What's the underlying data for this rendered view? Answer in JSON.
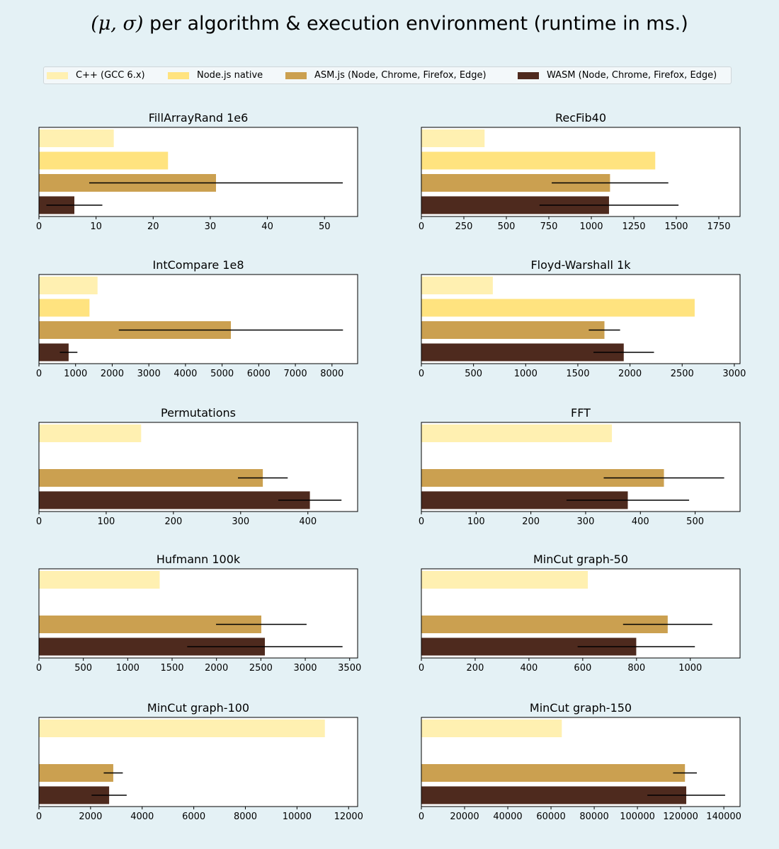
{
  "title_prefix": "(μ, σ)",
  "title_suffix": " per algorithm & execution environment (runtime in ms.)",
  "colors": {
    "cpp": "#fff0b1",
    "node": "#ffe37f",
    "asmjs": "#cba050",
    "wasm": "#4e2a1e",
    "background": "#e4f1f5"
  },
  "legend": [
    {
      "label": "C++ (GCC 6.x)",
      "color": "#fff0b1"
    },
    {
      "label": "Node.js native",
      "color": "#ffe37f"
    },
    {
      "label": "ASM.js (Node, Chrome, Firefox, Edge)",
      "color": "#cba050"
    },
    {
      "label": "WASM (Node, Chrome, Firefox, Edge)",
      "color": "#4e2a1e"
    }
  ],
  "chart_data": [
    {
      "type": "bar",
      "orientation": "horizontal",
      "title": "FillArrayRand 1e6",
      "series": [
        "C++ (GCC 6.x)",
        "Node.js native",
        "ASM.js (Node, Chrome, Firefox, Edge)",
        "WASM (Node, Chrome, Firefox, Edge)"
      ],
      "values": [
        13.1,
        22.6,
        31.0,
        6.2
      ],
      "errors": [
        null,
        null,
        22.2,
        4.9
      ],
      "xlim": [
        0,
        55.8
      ],
      "xticks": [
        0,
        10,
        20,
        30,
        40,
        50
      ],
      "grid": false
    },
    {
      "type": "bar",
      "orientation": "horizontal",
      "title": "RecFib40",
      "series": [
        "C++ (GCC 6.x)",
        "Node.js native",
        "ASM.js (Node, Chrome, Firefox, Edge)",
        "WASM (Node, Chrome, Firefox, Edge)"
      ],
      "values": [
        372,
        1376,
        1110,
        1104
      ],
      "errors": [
        null,
        null,
        343,
        409
      ],
      "xlim": [
        0,
        1875
      ],
      "xticks": [
        0,
        250,
        500,
        750,
        1000,
        1250,
        1500,
        1750
      ],
      "grid": false
    },
    {
      "type": "bar",
      "orientation": "horizontal",
      "title": "IntCompare 1e8",
      "series": [
        "C++ (GCC 6.x)",
        "Node.js native",
        "ASM.js (Node, Chrome, Firefox, Edge)",
        "WASM (Node, Chrome, Firefox, Edge)"
      ],
      "values": [
        1600,
        1380,
        5240,
        810
      ],
      "errors": [
        null,
        null,
        3060,
        240
      ],
      "xlim": [
        0,
        8700
      ],
      "xticks": [
        0,
        1000,
        2000,
        3000,
        4000,
        5000,
        6000,
        7000,
        8000
      ],
      "grid": false
    },
    {
      "type": "bar",
      "orientation": "horizontal",
      "title": "Floyd-Warshall 1k",
      "series": [
        "C++ (GCC 6.x)",
        "Node.js native",
        "ASM.js (Node, Chrome, Firefox, Edge)",
        "WASM (Node, Chrome, Firefox, Edge)"
      ],
      "values": [
        685,
        2620,
        1755,
        1940
      ],
      "errors": [
        null,
        null,
        150,
        290
      ],
      "xlim": [
        0,
        3055
      ],
      "xticks": [
        0,
        500,
        1000,
        1500,
        2000,
        2500,
        3000
      ],
      "grid": false
    },
    {
      "type": "bar",
      "orientation": "horizontal",
      "title": "Permutations",
      "series": [
        "C++ (GCC 6.x)",
        "Node.js native",
        "ASM.js (Node, Chrome, Firefox, Edge)",
        "WASM (Node, Chrome, Firefox, Edge)"
      ],
      "values": [
        152,
        null,
        333,
        403
      ],
      "errors": [
        null,
        null,
        37,
        47
      ],
      "xlim": [
        0,
        474
      ],
      "xticks": [
        0,
        100,
        200,
        300,
        400
      ],
      "grid": false
    },
    {
      "type": "bar",
      "orientation": "horizontal",
      "title": "FFT",
      "series": [
        "C++ (GCC 6.x)",
        "Node.js native",
        "ASM.js (Node, Chrome, Firefox, Edge)",
        "WASM (Node, Chrome, Firefox, Edge)"
      ],
      "values": [
        348,
        null,
        443,
        377
      ],
      "errors": [
        null,
        null,
        110,
        112
      ],
      "xlim": [
        0,
        582
      ],
      "xticks": [
        0,
        100,
        200,
        300,
        400,
        500
      ],
      "grid": false
    },
    {
      "type": "bar",
      "orientation": "horizontal",
      "title": "Hufmann 100k",
      "series": [
        "C++ (GCC 6.x)",
        "Node.js native",
        "ASM.js (Node, Chrome, Firefox, Edge)",
        "WASM (Node, Chrome, Firefox, Edge)"
      ],
      "values": [
        1360,
        null,
        2505,
        2545
      ],
      "errors": [
        null,
        null,
        510,
        875
      ],
      "xlim": [
        0,
        3590
      ],
      "xticks": [
        0,
        500,
        1000,
        1500,
        2000,
        2500,
        3000,
        3500
      ],
      "grid": false
    },
    {
      "type": "bar",
      "orientation": "horizontal",
      "title": "MinCut graph-50",
      "series": [
        "C++ (GCC 6.x)",
        "Node.js native",
        "ASM.js (Node, Chrome, Firefox, Edge)",
        "WASM (Node, Chrome, Firefox, Edge)"
      ],
      "values": [
        619,
        null,
        916,
        799
      ],
      "errors": [
        null,
        null,
        166,
        218
      ],
      "xlim": [
        0,
        1185
      ],
      "xticks": [
        0,
        200,
        400,
        600,
        800,
        1000
      ],
      "grid": false
    },
    {
      "type": "bar",
      "orientation": "horizontal",
      "title": "MinCut graph-100",
      "series": [
        "C++ (GCC 6.x)",
        "Node.js native",
        "ASM.js (Node, Chrome, Firefox, Edge)",
        "WASM (Node, Chrome, Firefox, Edge)"
      ],
      "values": [
        11080,
        null,
        2880,
        2720
      ],
      "errors": [
        null,
        null,
        370,
        680
      ],
      "xlim": [
        0,
        12350
      ],
      "xticks": [
        0,
        2000,
        4000,
        6000,
        8000,
        10000,
        12000
      ],
      "grid": false
    },
    {
      "type": "bar",
      "orientation": "horizontal",
      "title": "MinCut graph-150",
      "series": [
        "C++ (GCC 6.x)",
        "Node.js native",
        "ASM.js (Node, Chrome, Firefox, Edge)",
        "WASM (Node, Chrome, Firefox, Edge)"
      ],
      "values": [
        65000,
        null,
        122000,
        122600
      ],
      "errors": [
        null,
        null,
        5500,
        18000
      ],
      "xlim": [
        0,
        147500
      ],
      "xticks": [
        0,
        20000,
        40000,
        60000,
        80000,
        100000,
        120000,
        140000
      ],
      "grid": false
    }
  ]
}
